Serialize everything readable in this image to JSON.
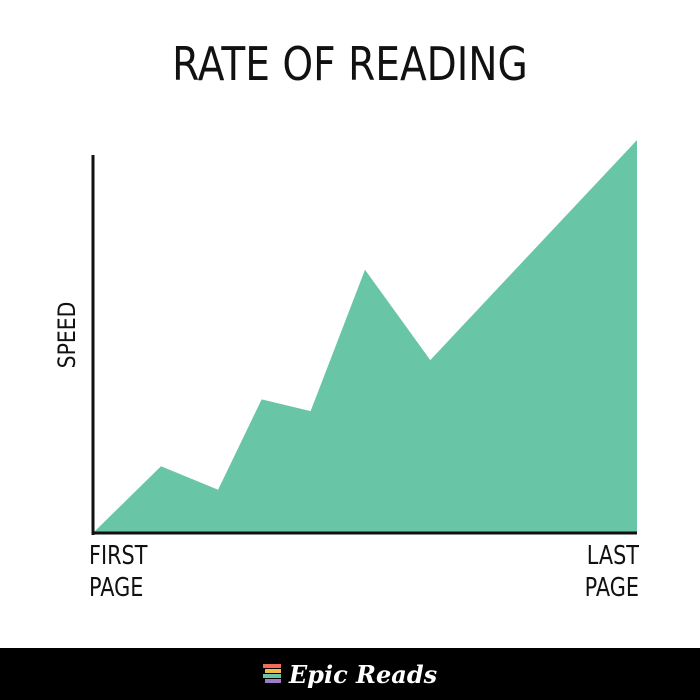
{
  "chart_data": {
    "type": "area",
    "title": "RATE OF READING",
    "y_label": "SPEED",
    "x": [
      0,
      12.5,
      23,
      31,
      40,
      50,
      62,
      100
    ],
    "series": [
      {
        "color": "#68c5a5",
        "values": [
          0,
          17,
          11,
          34,
          31,
          67,
          44,
          100
        ]
      }
    ],
    "xlim": [
      0,
      100
    ],
    "ylim": [
      0,
      100
    ],
    "xticks": [
      {
        "value": 0,
        "label": "FIRST PAGE"
      },
      {
        "value": 100,
        "label": "LAST PAGE"
      }
    ]
  },
  "footer": {
    "brand": "Epic Reads"
  }
}
